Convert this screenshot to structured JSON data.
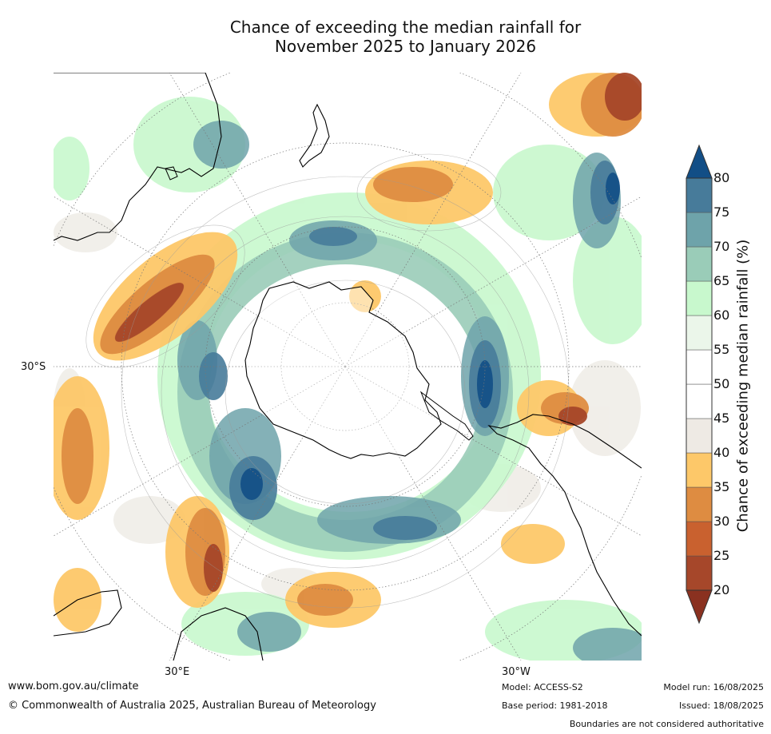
{
  "title": {
    "line1": "Chance of exceeding the median rainfall for",
    "line2": "November 2025 to January 2026"
  },
  "map": {
    "projection": "south-polar-stereographic",
    "lat_label": "30°S",
    "lon_labels": [
      "30°E",
      "30°W"
    ]
  },
  "legend": {
    "label": "Chance of exceeding median rainfall (%)",
    "ticks": [
      "20",
      "25",
      "30",
      "35",
      "40",
      "45",
      "50",
      "55",
      "60",
      "65",
      "70",
      "75",
      "80"
    ],
    "band_colors": [
      "#a6472a",
      "#c9612f",
      "#de8c41",
      "#fdc869",
      "#eeeae4",
      "#ffffff",
      "#ffffff",
      "#ebf6ea",
      "#c8f8cd",
      "#9accb8",
      "#6ea3aa",
      "#477b9a"
    ],
    "low_arrow_color": "#8a3120",
    "high_arrow_color": "#124e86"
  },
  "footer": {
    "website": "www.bom.gov.au/climate",
    "copyright": "© Commonwealth of Australia 2025, Australian Bureau of Meteorology",
    "model": "Model: ACCESS-S2",
    "base_period": "Base period: 1981-2018",
    "model_run": "Model run: 16/08/2025",
    "issued": "Issued: 18/08/2025",
    "boundaries": "Boundaries are not considered authoritative"
  }
}
